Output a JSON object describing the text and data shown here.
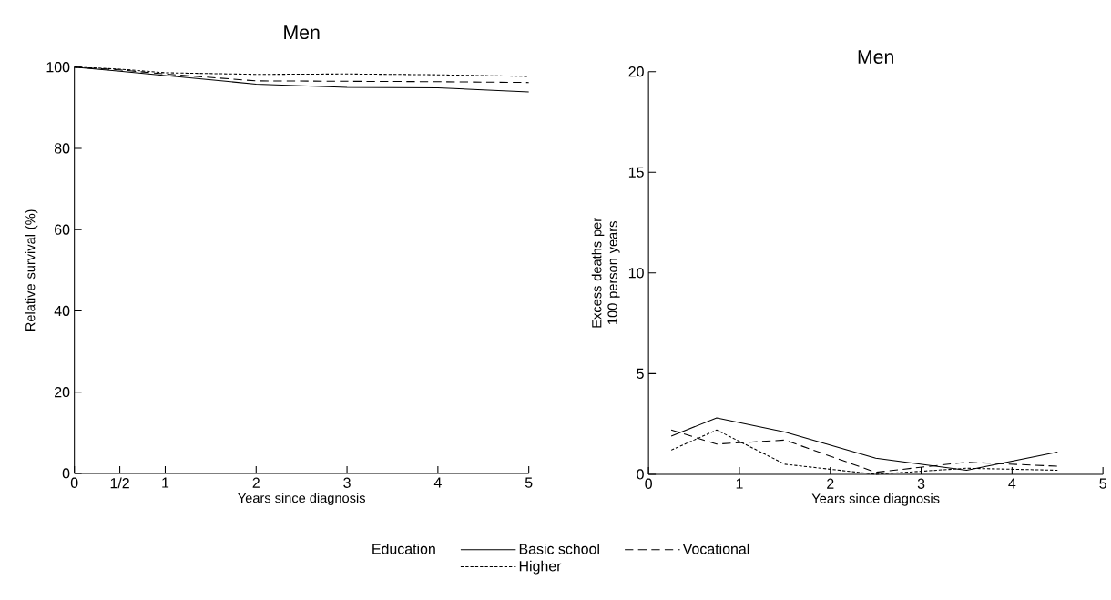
{
  "chart_data": [
    {
      "type": "line",
      "title": "Men",
      "xlabel": "Years since diagnosis",
      "ylabel": "Relative survival (%)",
      "xlim": [
        0,
        5
      ],
      "ylim": [
        0,
        100
      ],
      "xticks": [
        0,
        {
          "value": 0.5,
          "label": "1/2"
        },
        1,
        2,
        3,
        4,
        5
      ],
      "yticks": [
        0,
        20,
        40,
        60,
        80,
        100
      ],
      "legend": "bottom",
      "legend_title": "Education",
      "series": [
        {
          "name": "Basic school",
          "color": "#000000",
          "line_style": "solid",
          "x": [
            0,
            0.5,
            1,
            2,
            3,
            4,
            5
          ],
          "values": [
            100,
            99.0,
            97.9,
            95.8,
            95.0,
            94.9,
            93.9
          ]
        },
        {
          "name": "Vocational",
          "color": "#000000",
          "line_style": "dashed",
          "x": [
            0,
            0.5,
            1,
            2,
            3,
            4,
            5
          ],
          "values": [
            100,
            99.3,
            98.3,
            96.6,
            96.5,
            96.4,
            96.2
          ]
        },
        {
          "name": "Higher",
          "color": "#000000",
          "line_style": "dotted",
          "x": [
            0,
            0.5,
            1,
            2,
            3,
            4,
            5
          ],
          "values": [
            100,
            99.5,
            98.6,
            98.2,
            98.3,
            98.1,
            97.7
          ]
        }
      ]
    },
    {
      "type": "line",
      "title": "Men",
      "xlabel": "Years since diagnosis",
      "ylabel": "Excess deaths per 100 person years",
      "xlim": [
        0,
        5
      ],
      "ylim": [
        0,
        20
      ],
      "xticks": [
        0,
        1,
        2,
        3,
        4,
        5
      ],
      "yticks": [
        0,
        5,
        10,
        15,
        20
      ],
      "series": [
        {
          "color": "#000000",
          "line_style": "solid",
          "x": [
            0.25,
            0.75,
            1.5,
            2.5,
            3.5,
            4.5
          ],
          "values": [
            1.9,
            2.8,
            2.1,
            0.8,
            0.2,
            1.1
          ]
        },
        {
          "color": "#000000",
          "line_style": "dashed",
          "x": [
            0.25,
            0.75,
            1.5,
            2.5,
            3.5,
            4.5
          ],
          "values": [
            2.2,
            1.5,
            1.7,
            0.1,
            0.6,
            0.4
          ]
        },
        {
          "color": "#000000",
          "line_style": "dotted",
          "x": [
            0.25,
            0.75,
            1.5,
            2.5,
            3.5,
            4.5
          ],
          "values": [
            1.2,
            2.2,
            0.5,
            0,
            0.3,
            0.2
          ]
        }
      ]
    }
  ]
}
